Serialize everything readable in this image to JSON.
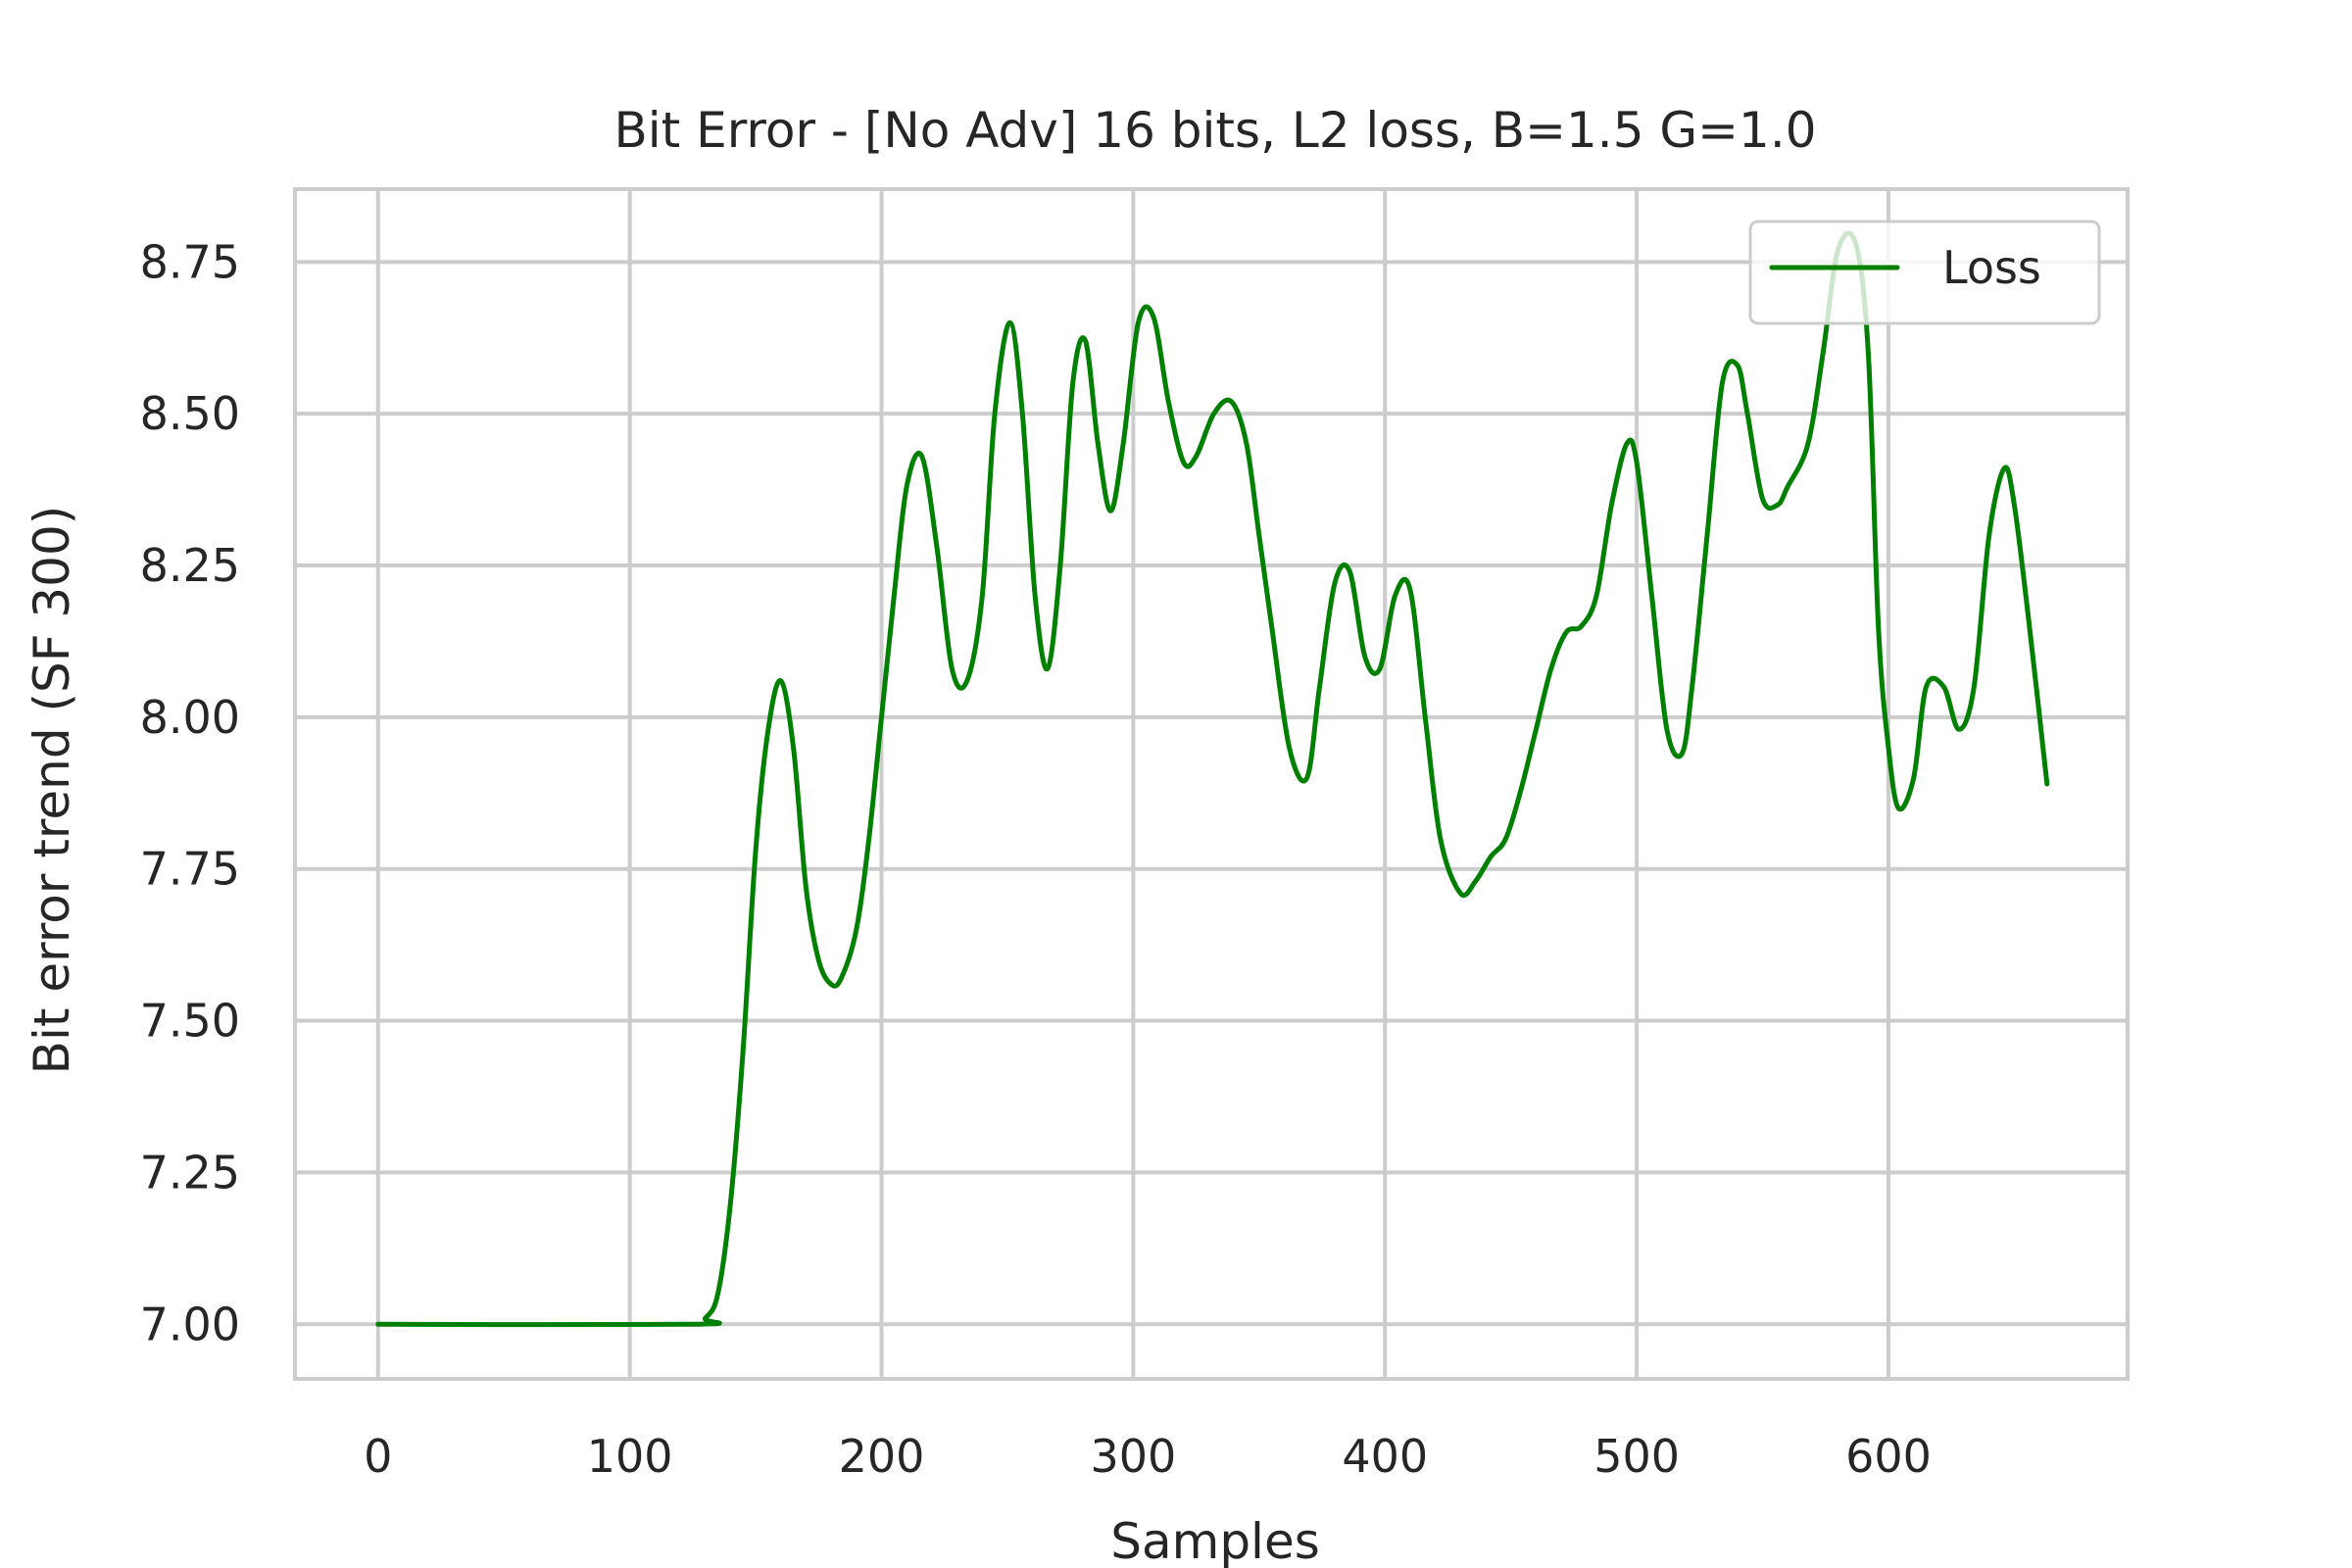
{
  "chart_data": {
    "type": "line",
    "title": "Bit Error - [No Adv] 16 bits, L2 loss, B=1.5 G=1.0",
    "xlabel": "Samples",
    "ylabel": "Bit error trend (SF 300)",
    "xlim": [
      -33,
      695
    ],
    "ylim": [
      6.91,
      8.87
    ],
    "xticks": [
      0,
      100,
      200,
      300,
      400,
      500,
      600
    ],
    "xtick_labels": [
      "0",
      "100",
      "200",
      "300",
      "400",
      "500",
      "600"
    ],
    "yticks": [
      7.0,
      7.25,
      7.5,
      7.75,
      8.0,
      8.25,
      8.5,
      8.75
    ],
    "ytick_labels": [
      "7.00",
      "7.25",
      "7.50",
      "7.75",
      "8.00",
      "8.25",
      "8.50",
      "8.75"
    ],
    "grid": true,
    "legend_position": "top-right",
    "series": [
      {
        "name": "Loss",
        "color": "#008000",
        "x": [
          0,
          125,
          130,
          135,
          140,
          145,
          150,
          155,
          160,
          165,
          170,
          175,
          180,
          184,
          190,
          195,
          200,
          205,
          210,
          216,
          222,
          228,
          234,
          240,
          245,
          251,
          256,
          261,
          266,
          271,
          276,
          281,
          286,
          291,
          296,
          302,
          308,
          314,
          320,
          325,
          332,
          339,
          345,
          350,
          355,
          362,
          369,
          374,
          380,
          386,
          392,
          398,
          404,
          410,
          416,
          422,
          430,
          436,
          442,
          448,
          454,
          460,
          466,
          472,
          478,
          484,
          490,
          496,
          500,
          506,
          512,
          518,
          522,
          528,
          534,
          540,
          544,
          550,
          556,
          560,
          568,
          574,
          580,
          587,
          592,
          596,
          600,
          604,
          610,
          615,
          622,
          628,
          634,
          640,
          646,
          650,
          656,
          663
        ],
        "y": [
          7.0,
          7.0,
          7.01,
          7.05,
          7.2,
          7.45,
          7.78,
          7.98,
          8.06,
          7.95,
          7.72,
          7.6,
          7.56,
          7.57,
          7.65,
          7.8,
          8.0,
          8.2,
          8.38,
          8.43,
          8.28,
          8.08,
          8.06,
          8.2,
          8.5,
          8.65,
          8.5,
          8.2,
          8.08,
          8.25,
          8.55,
          8.62,
          8.45,
          8.34,
          8.45,
          8.65,
          8.66,
          8.52,
          8.42,
          8.43,
          8.5,
          8.52,
          8.45,
          8.3,
          8.15,
          7.95,
          7.9,
          8.05,
          8.22,
          8.24,
          8.1,
          8.08,
          8.2,
          8.21,
          8.0,
          7.8,
          7.71,
          7.73,
          7.77,
          7.8,
          7.88,
          7.98,
          8.08,
          8.14,
          8.15,
          8.2,
          8.35,
          8.45,
          8.42,
          8.2,
          7.98,
          7.94,
          8.05,
          8.3,
          8.55,
          8.58,
          8.5,
          8.36,
          8.35,
          8.38,
          8.45,
          8.6,
          8.77,
          8.78,
          8.6,
          8.15,
          7.95,
          7.85,
          7.9,
          8.05,
          8.05,
          7.98,
          8.05,
          8.3,
          8.41,
          8.35,
          8.15,
          7.89
        ]
      }
    ]
  }
}
